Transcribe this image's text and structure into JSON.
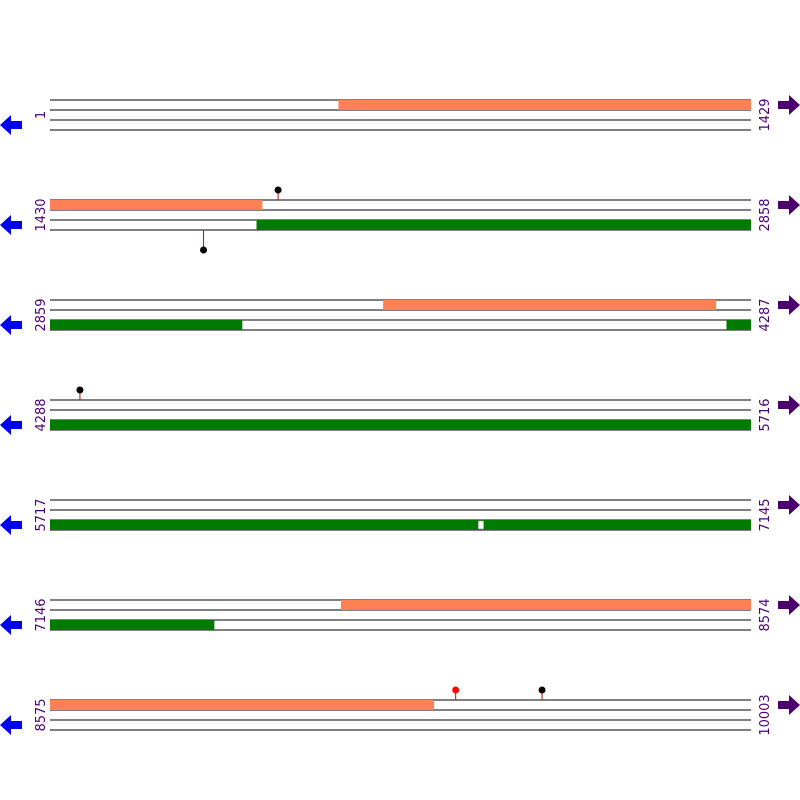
{
  "colors": {
    "forward_feature": "#ff8055",
    "reverse_feature": "#007a00",
    "track_line": "#000000",
    "coord_label": "#4b006e",
    "arrow_forward": "#4b006e",
    "arrow_reverse": "#0000ee",
    "marker_stem": "#cc0000",
    "marker_dot_default": "#000000",
    "marker_dot_highlight": "#ff0000"
  },
  "icons": {
    "forward": "right-arrow-icon",
    "reverse": "left-arrow-icon",
    "marker": "lollipop-marker-icon"
  },
  "rows": [
    {
      "start": 1,
      "end": 1429,
      "start_label": "1",
      "end_label": "1429",
      "forward_features": [
        [
          589,
          1429
        ]
      ],
      "reverse_features": [],
      "gaps": [],
      "markers": []
    },
    {
      "start": 1430,
      "end": 2858,
      "start_label": "1430",
      "end_label": "2858",
      "forward_features": [
        [
          1430,
          1862
        ]
      ],
      "reverse_features": [
        [
          1851,
          2858
        ]
      ],
      "gaps": [],
      "markers": [
        {
          "position": 1895,
          "strand": "forward",
          "color": "black"
        },
        {
          "position": 1743,
          "strand": "reverse",
          "color": "black"
        }
      ]
    },
    {
      "start": 2859,
      "end": 4287,
      "start_label": "2859",
      "end_label": "4287",
      "forward_features": [
        [
          3538,
          4216
        ]
      ],
      "reverse_features": [
        [
          2859,
          3250
        ],
        [
          4238,
          4287
        ]
      ],
      "gaps": [],
      "markers": []
    },
    {
      "start": 4288,
      "end": 5716,
      "start_label": "4288",
      "end_label": "5716",
      "forward_features": [],
      "reverse_features": [
        [
          4288,
          5716
        ]
      ],
      "gaps": [],
      "markers": [
        {
          "position": 4349,
          "strand": "forward",
          "color": "black"
        }
      ]
    },
    {
      "start": 5717,
      "end": 7145,
      "start_label": "5717",
      "end_label": "7145",
      "forward_features": [],
      "reverse_features": [
        [
          5717,
          7145
        ]
      ],
      "gaps": [
        [
          6590,
          6600
        ]
      ],
      "markers": []
    },
    {
      "start": 7146,
      "end": 8574,
      "start_label": "7146",
      "end_label": "8574",
      "forward_features": [
        [
          7739,
          8574
        ]
      ],
      "reverse_features": [
        [
          7146,
          7480
        ]
      ],
      "gaps": [],
      "markers": []
    },
    {
      "start": 8575,
      "end": 10003,
      "start_label": "8575",
      "end_label": "10003",
      "forward_features": [
        [
          8575,
          9357
        ]
      ],
      "reverse_features": [],
      "gaps": [],
      "markers": [
        {
          "position": 9402,
          "strand": "forward",
          "color": "red"
        },
        {
          "position": 9578,
          "strand": "forward",
          "color": "black"
        }
      ]
    }
  ]
}
